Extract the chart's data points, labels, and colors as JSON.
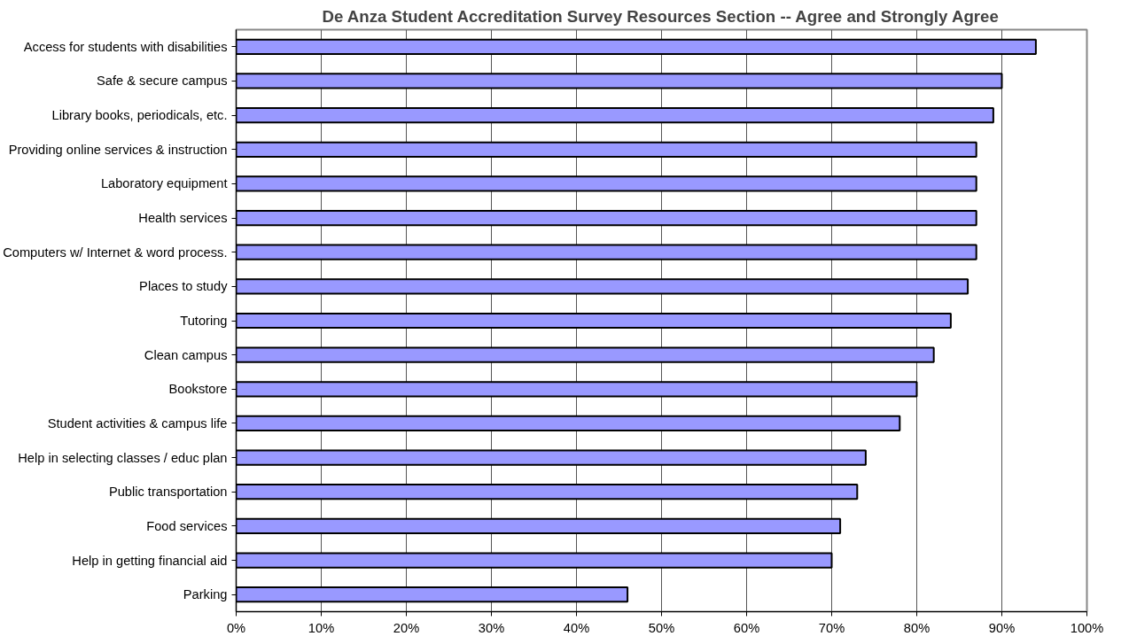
{
  "chart_data": {
    "type": "bar",
    "orientation": "horizontal",
    "title": "De Anza Student Accreditation Survey Resources Section -- Agree and Strongly Agree",
    "categories": [
      "Access for students with disabilities",
      "Safe & secure campus",
      "Library books, periodicals, etc.",
      "Providing online services & instruction",
      "Laboratory equipment",
      "Health services",
      "Computers w/ Internet & word process.",
      "Places to study",
      "Tutoring",
      "Clean campus",
      "Bookstore",
      "Student activities & campus life",
      "Help in selecting classes / educ plan",
      "Public transportation",
      "Food services",
      "Help in getting financial aid",
      "Parking"
    ],
    "values": [
      94,
      90,
      89,
      87,
      87,
      87,
      87,
      86,
      84,
      82,
      80,
      78,
      74,
      73,
      71,
      70,
      46
    ],
    "color": "#9999ff",
    "xlim": [
      0,
      100
    ],
    "xticks": [
      {
        "value": 0,
        "label": "0%"
      },
      {
        "value": 10,
        "label": "10%"
      },
      {
        "value": 20,
        "label": "20%"
      },
      {
        "value": 30,
        "label": "30%"
      },
      {
        "value": 40,
        "label": "40%"
      },
      {
        "value": 50,
        "label": "50%"
      },
      {
        "value": 60,
        "label": "60%"
      },
      {
        "value": 70,
        "label": "70%"
      },
      {
        "value": 80,
        "label": "80%"
      },
      {
        "value": 90,
        "label": "90%"
      },
      {
        "value": 100,
        "label": "100%"
      }
    ],
    "grid": "x"
  }
}
